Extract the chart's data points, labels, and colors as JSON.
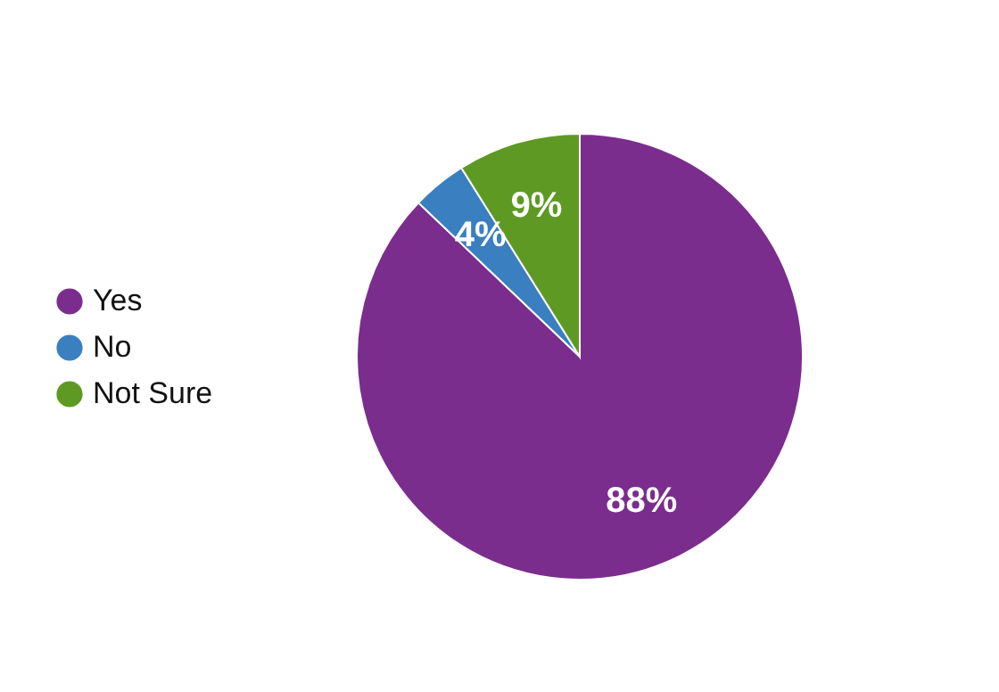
{
  "chart_data": {
    "type": "pie",
    "categories": [
      "Yes",
      "No",
      "Not Sure"
    ],
    "values": [
      88,
      4,
      9
    ],
    "colors": [
      "#7b2d8e",
      "#3a7fc0",
      "#5e9a23"
    ],
    "value_labels": [
      "88%",
      "4%",
      "9%"
    ],
    "legend": "left"
  }
}
